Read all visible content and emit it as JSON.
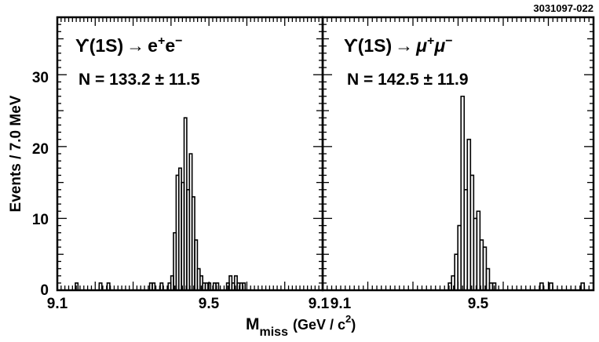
{
  "figure_id": "3031097-022",
  "chart_data": [
    {
      "type": "bar",
      "style": "step-histogram",
      "decay_prefix": "ϒ(1S)",
      "arrow": "→",
      "decay_final": "e",
      "decay_final_charge1": "+",
      "decay_final2": "e",
      "decay_final_charge2": "−",
      "fit_result": "N = 133.2 ± 11.5",
      "xlim": [
        9.1,
        9.8
      ],
      "ylim": [
        0,
        38
      ],
      "bin_width": 0.007,
      "x_ticks": [
        "9.1",
        "9.5"
      ],
      "y_ticks": [
        "0",
        "10",
        "20",
        "30"
      ],
      "bins": [
        {
          "x": 9.151,
          "y": 1
        },
        {
          "x": 9.214,
          "y": 1
        },
        {
          "x": 9.235,
          "y": 1
        },
        {
          "x": 9.347,
          "y": 1
        },
        {
          "x": 9.354,
          "y": 1
        },
        {
          "x": 9.375,
          "y": 1
        },
        {
          "x": 9.396,
          "y": 1
        },
        {
          "x": 9.403,
          "y": 2
        },
        {
          "x": 9.41,
          "y": 8
        },
        {
          "x": 9.417,
          "y": 16
        },
        {
          "x": 9.424,
          "y": 17
        },
        {
          "x": 9.431,
          "y": 15
        },
        {
          "x": 9.438,
          "y": 24
        },
        {
          "x": 9.445,
          "y": 14
        },
        {
          "x": 9.452,
          "y": 19
        },
        {
          "x": 9.459,
          "y": 13
        },
        {
          "x": 9.466,
          "y": 7
        },
        {
          "x": 9.473,
          "y": 3
        },
        {
          "x": 9.48,
          "y": 2
        },
        {
          "x": 9.487,
          "y": 1
        },
        {
          "x": 9.494,
          "y": 1
        },
        {
          "x": 9.501,
          "y": 1
        },
        {
          "x": 9.515,
          "y": 1
        },
        {
          "x": 9.522,
          "y": 1
        },
        {
          "x": 9.55,
          "y": 1
        },
        {
          "x": 9.557,
          "y": 2
        },
        {
          "x": 9.564,
          "y": 1
        },
        {
          "x": 9.571,
          "y": 2
        },
        {
          "x": 9.578,
          "y": 1
        },
        {
          "x": 9.585,
          "y": 1
        },
        {
          "x": 9.592,
          "y": 1
        }
      ]
    },
    {
      "type": "bar",
      "style": "step-histogram",
      "decay_prefix": "ϒ(1S)",
      "arrow": "→",
      "decay_final": "μ",
      "decay_final_charge1": "+",
      "decay_final2": "μ",
      "decay_final_charge2": "−",
      "fit_result": "N = 142.5 ± 11.9",
      "xlim": [
        9.1,
        9.7
      ],
      "ylim": [
        0,
        38
      ],
      "bin_width": 0.007,
      "x_ticks": [
        "9.1",
        "9.5"
      ],
      "y_ticks": [],
      "bins": [
        {
          "x": 9.382,
          "y": 1
        },
        {
          "x": 9.389,
          "y": 2
        },
        {
          "x": 9.396,
          "y": 5
        },
        {
          "x": 9.403,
          "y": 9
        },
        {
          "x": 9.41,
          "y": 27
        },
        {
          "x": 9.417,
          "y": 14
        },
        {
          "x": 9.424,
          "y": 21
        },
        {
          "x": 9.431,
          "y": 16
        },
        {
          "x": 9.438,
          "y": 10
        },
        {
          "x": 9.445,
          "y": 11
        },
        {
          "x": 9.452,
          "y": 7
        },
        {
          "x": 9.459,
          "y": 6
        },
        {
          "x": 9.466,
          "y": 3
        },
        {
          "x": 9.473,
          "y": 1
        },
        {
          "x": 9.48,
          "y": 1
        },
        {
          "x": 9.585,
          "y": 1
        },
        {
          "x": 9.606,
          "y": 1
        },
        {
          "x": 9.676,
          "y": 1
        }
      ]
    }
  ],
  "ylabel": "Events / 7.0 MeV",
  "xlabel_main": "M",
  "xlabel_sub": "miss",
  "xlabel_unit_open": "(GeV / c",
  "xlabel_unit_sup": "2",
  "xlabel_unit_close": ")",
  "x_end_tick": "9.1"
}
